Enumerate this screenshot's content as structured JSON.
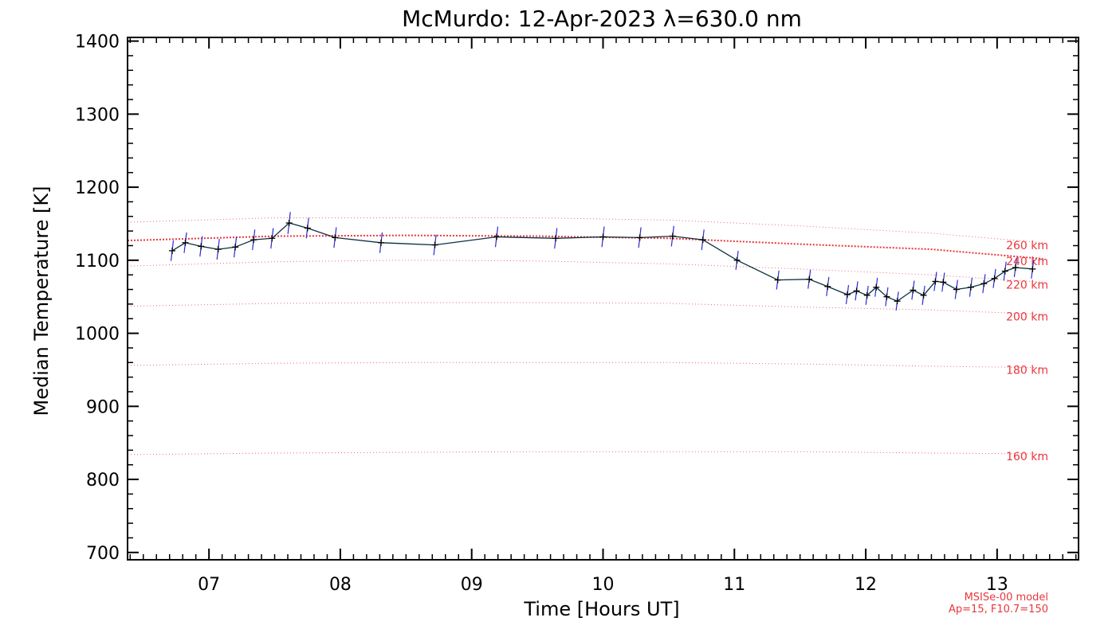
{
  "chart_data": {
    "type": "line",
    "title": "McMurdo: 12-Apr-2023 λ=630.0 nm",
    "xlabel": "Time [Hours UT]",
    "ylabel": "Median Temperature [K]",
    "xlim": [
      6.38,
      13.62
    ],
    "ylim": [
      690,
      1405
    ],
    "x_ticks": [
      7,
      8,
      9,
      10,
      11,
      12,
      13
    ],
    "x_tick_labels": [
      "07",
      "08",
      "09",
      "10",
      "11",
      "12",
      "13"
    ],
    "y_ticks": [
      700,
      800,
      900,
      1000,
      1100,
      1200,
      1300,
      1400
    ],
    "y_tick_labels": [
      "700",
      "800",
      "900",
      "1000",
      "1100",
      "1200",
      "1300",
      "1400"
    ],
    "grid": false,
    "series": [
      {
        "color": "#0a3040",
        "error_color": "#2b2bd6",
        "x": [
          6.72,
          6.82,
          6.94,
          7.07,
          7.2,
          7.34,
          7.48,
          7.61,
          7.75,
          7.96,
          8.31,
          8.72,
          9.19,
          9.64,
          10.0,
          10.28,
          10.53,
          10.76,
          11.02,
          11.33,
          11.57,
          11.71,
          11.86,
          11.93,
          12.01,
          12.08,
          12.16,
          12.24,
          12.36,
          12.44,
          12.53,
          12.59,
          12.69,
          12.8,
          12.9,
          12.98,
          13.06,
          13.14,
          13.27
        ],
        "y": [
          1113,
          1124,
          1119,
          1115,
          1118,
          1128,
          1130,
          1151,
          1144,
          1131,
          1124,
          1121,
          1132,
          1130,
          1132,
          1131,
          1133,
          1128,
          1100,
          1073,
          1074,
          1064,
          1053,
          1058,
          1052,
          1063,
          1050,
          1044,
          1059,
          1052,
          1071,
          1070,
          1060,
          1063,
          1068,
          1075,
          1085,
          1090,
          1088
        ],
        "error": [
          14,
          14,
          14,
          14,
          14,
          14,
          14,
          15,
          14,
          14,
          14,
          14,
          14,
          14,
          14,
          14,
          14,
          14,
          13,
          13,
          13,
          13,
          13,
          13,
          13,
          13,
          13,
          13,
          13,
          13,
          13,
          13,
          13,
          13,
          13,
          13,
          13,
          13,
          13
        ]
      }
    ],
    "model_curves": [
      {
        "label": "260 km",
        "x": [
          6.38,
          7.5,
          8.5,
          9.5,
          10.5,
          11.5,
          12.5,
          13.35
        ],
        "y": [
          1152,
          1158,
          1158,
          1158,
          1155,
          1147,
          1137,
          1124
        ]
      },
      {
        "label": "240 km",
        "x": [
          6.38,
          7.5,
          8.5,
          9.5,
          10.5,
          11.5,
          12.5,
          13.35
        ],
        "y": [
          1127,
          1133,
          1134,
          1133,
          1130,
          1122,
          1115,
          1102
        ]
      },
      {
        "label": "220 km",
        "x": [
          6.38,
          7.5,
          8.5,
          9.5,
          10.5,
          11.5,
          12.5,
          13.35
        ],
        "y": [
          1092,
          1098,
          1100,
          1099,
          1095,
          1088,
          1080,
          1070
        ]
      },
      {
        "label": "200 km",
        "x": [
          6.38,
          7.5,
          8.5,
          9.5,
          10.5,
          11.5,
          12.5,
          13.35
        ],
        "y": [
          1037,
          1041,
          1042,
          1042,
          1041,
          1036,
          1032,
          1026
        ]
      },
      {
        "label": "180 km",
        "x": [
          6.38,
          7.5,
          8.5,
          9.5,
          10.5,
          11.5,
          12.5,
          13.35
        ],
        "y": [
          956,
          959,
          960,
          960,
          960,
          958,
          955,
          953
        ]
      },
      {
        "label": "160 km",
        "x": [
          6.38,
          7.5,
          8.5,
          9.5,
          10.5,
          11.5,
          12.5,
          13.35
        ],
        "y": [
          834,
          836,
          837,
          838,
          838,
          838,
          836,
          835
        ]
      }
    ],
    "model_note": [
      "MSISe-00 model",
      "Ap=15, F10.7=150"
    ],
    "model_color": "#e8373d"
  }
}
